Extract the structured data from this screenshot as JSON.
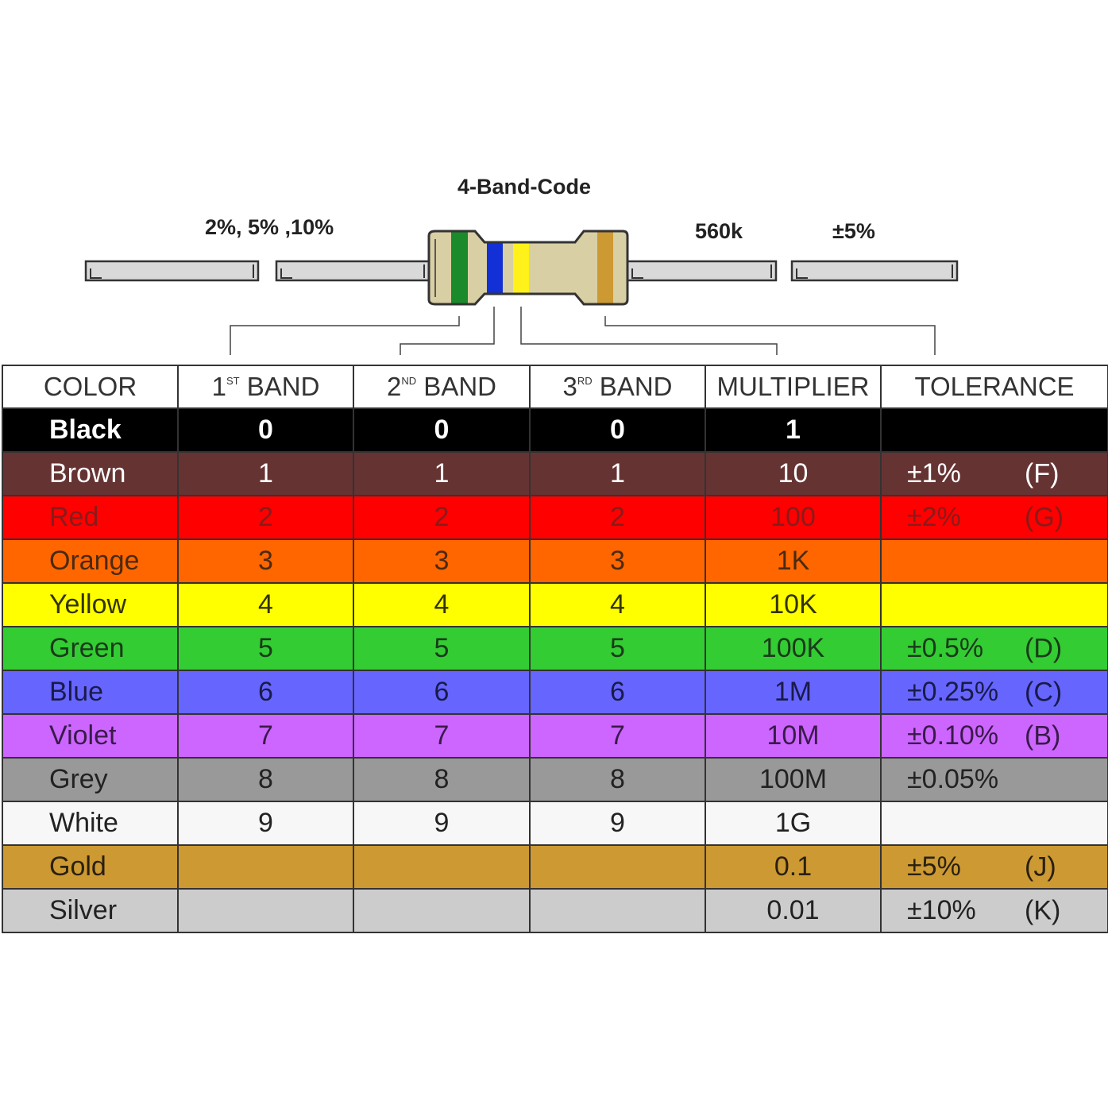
{
  "diagram": {
    "title": "4-Band-Code",
    "label_tolerances": "2%, 5% ,10%",
    "label_value": "560k",
    "label_tolerance": "±5%",
    "band_colors": [
      "#1a8a2a",
      "#1230d6",
      "#fff21a",
      "#cc9933"
    ],
    "body_color": "#d9cfa4"
  },
  "table": {
    "headers": [
      {
        "main": "COLOR",
        "sup": ""
      },
      {
        "main": "1",
        "sup": "ST",
        "rest": " BAND"
      },
      {
        "main": "2",
        "sup": "ND",
        "rest": " BAND"
      },
      {
        "main": "3",
        "sup": "RD",
        "rest": " BAND"
      },
      {
        "main": "MULTIPLIER",
        "sup": ""
      },
      {
        "main": "TOLERANCE",
        "sup": ""
      }
    ],
    "rows": [
      {
        "name": "Black",
        "b1": "0",
        "b2": "0",
        "b3": "0",
        "mult": "1",
        "tol": "",
        "code": "",
        "bg": "#000000",
        "fg": "#ffffff",
        "bold": true
      },
      {
        "name": "Brown",
        "b1": "1",
        "b2": "1",
        "b3": "1",
        "mult": "10",
        "tol": "±1%",
        "code": "(F)",
        "bg": "#663333",
        "fg": "#ffffff",
        "bold": false
      },
      {
        "name": "Red",
        "b1": "2",
        "b2": "2",
        "b3": "2",
        "mult": "100",
        "tol": "±2%",
        "code": "(G)",
        "bg": "#ff0000",
        "fg": "#8b1a1a",
        "bold": false
      },
      {
        "name": "Orange",
        "b1": "3",
        "b2": "3",
        "b3": "3",
        "mult": "1K",
        "tol": "",
        "code": "",
        "bg": "#ff6600",
        "fg": "#4a2a10",
        "bold": false
      },
      {
        "name": "Yellow",
        "b1": "4",
        "b2": "4",
        "b3": "4",
        "mult": "10K",
        "tol": "",
        "code": "",
        "bg": "#ffff00",
        "fg": "#333300",
        "bold": false
      },
      {
        "name": "Green",
        "b1": "5",
        "b2": "5",
        "b3": "5",
        "mult": "100K",
        "tol": "±0.5%",
        "code": "(D)",
        "bg": "#33cc33",
        "fg": "#1a3a1a",
        "bold": false
      },
      {
        "name": "Blue",
        "b1": "6",
        "b2": "6",
        "b3": "6",
        "mult": "1M",
        "tol": "±0.25%",
        "code": "(C)",
        "bg": "#6666ff",
        "fg": "#1a1a4a",
        "bold": false
      },
      {
        "name": "Violet",
        "b1": "7",
        "b2": "7",
        "b3": "7",
        "mult": "10M",
        "tol": "±0.10%",
        "code": "(B)",
        "bg": "#cc66ff",
        "fg": "#3a1a4a",
        "bold": false
      },
      {
        "name": "Grey",
        "b1": "8",
        "b2": "8",
        "b3": "8",
        "mult": "100M",
        "tol": "±0.05%",
        "code": "",
        "bg": "#999999",
        "fg": "#222222",
        "bold": false
      },
      {
        "name": "White",
        "b1": "9",
        "b2": "9",
        "b3": "9",
        "mult": "1G",
        "tol": "",
        "code": "",
        "bg": "#f7f7f7",
        "fg": "#222222",
        "bold": false
      },
      {
        "name": "Gold",
        "b1": "",
        "b2": "",
        "b3": "",
        "mult": "0.1",
        "tol": "±5%",
        "code": "(J)",
        "bg": "#cc9933",
        "fg": "#2a2010",
        "bold": false
      },
      {
        "name": "Silver",
        "b1": "",
        "b2": "",
        "b3": "",
        "mult": "0.01",
        "tol": "±10%",
        "code": "(K)",
        "bg": "#cccccc",
        "fg": "#222222",
        "bold": false
      }
    ]
  }
}
